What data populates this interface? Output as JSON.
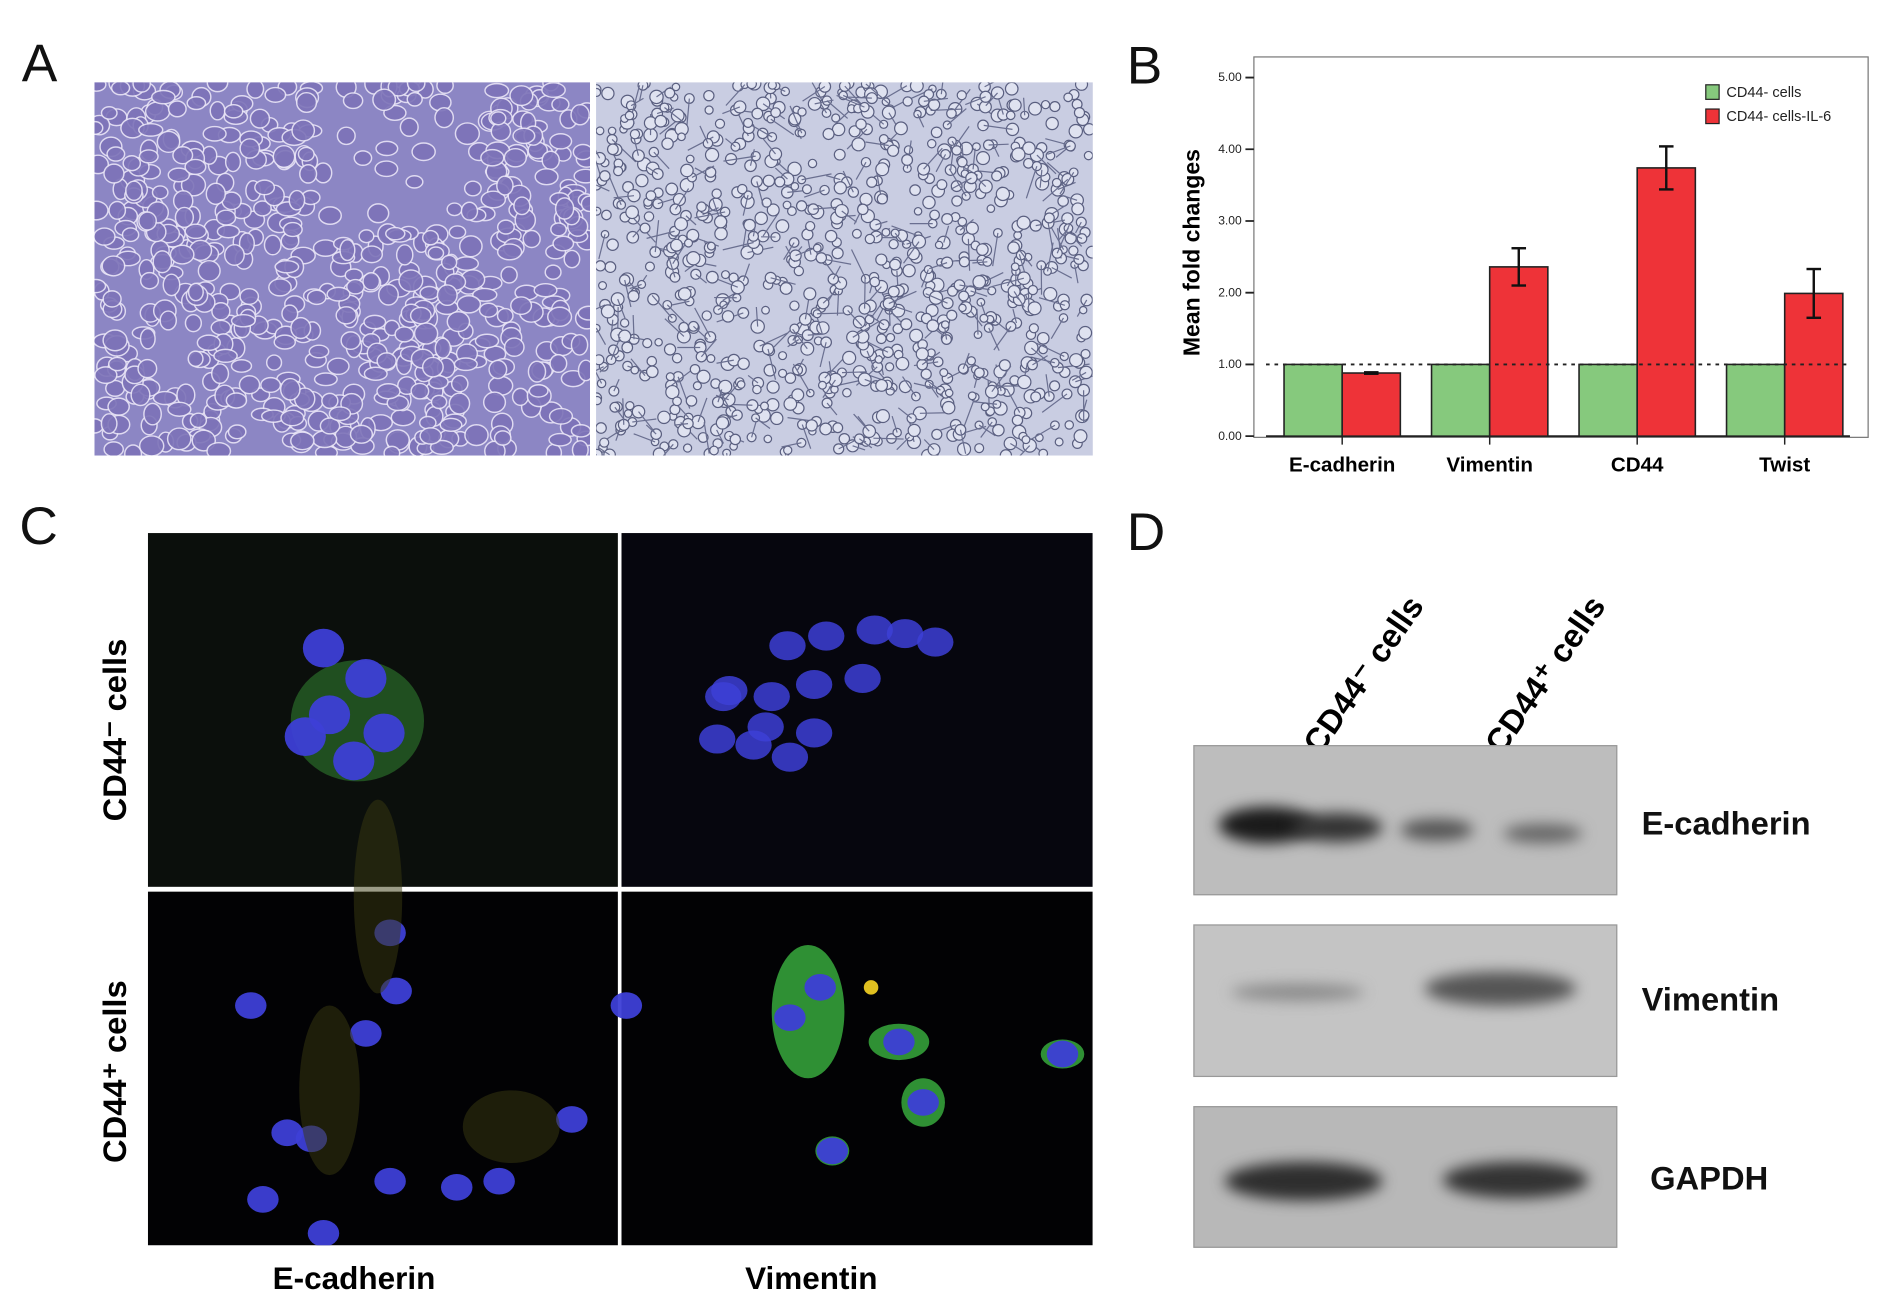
{
  "panels": {
    "a": "A",
    "b": "B",
    "c": "C",
    "d": "D"
  },
  "panel_c": {
    "row_labels": [
      "CD44⁻ cells",
      "CD44⁺ cells"
    ],
    "col_labels": [
      "E-cadherin",
      "Vimentin"
    ]
  },
  "panel_d": {
    "lane_labels": [
      "CD44⁻ cells",
      "CD44⁺ cells"
    ],
    "blot_labels": [
      "E-cadherin",
      "Vimentin",
      "GAPDH"
    ]
  },
  "chart_data": {
    "type": "bar",
    "title": "",
    "xlabel": "",
    "ylabel": "Mean fold changes",
    "ylim": [
      0,
      5
    ],
    "yticks": [
      "0.00",
      "1.00",
      "2.00",
      "3.00",
      "4.00",
      "5.00"
    ],
    "categories": [
      "E-cadherin",
      "Vimentin",
      "CD44",
      "Twist"
    ],
    "series": [
      {
        "name": "CD44- cells",
        "color": "#86c97d",
        "values": [
          1.0,
          1.0,
          1.0,
          1.0
        ]
      },
      {
        "name": "CD44- cells-IL-6",
        "color": "#ee3338",
        "values": [
          0.88,
          2.36,
          3.74,
          1.99
        ],
        "error_low": [
          0.87,
          2.1,
          3.44,
          1.65
        ],
        "error_high": [
          0.89,
          2.62,
          4.04,
          2.33
        ]
      }
    ],
    "reference_line": 1.0,
    "legend": "top-right",
    "grid": false
  }
}
